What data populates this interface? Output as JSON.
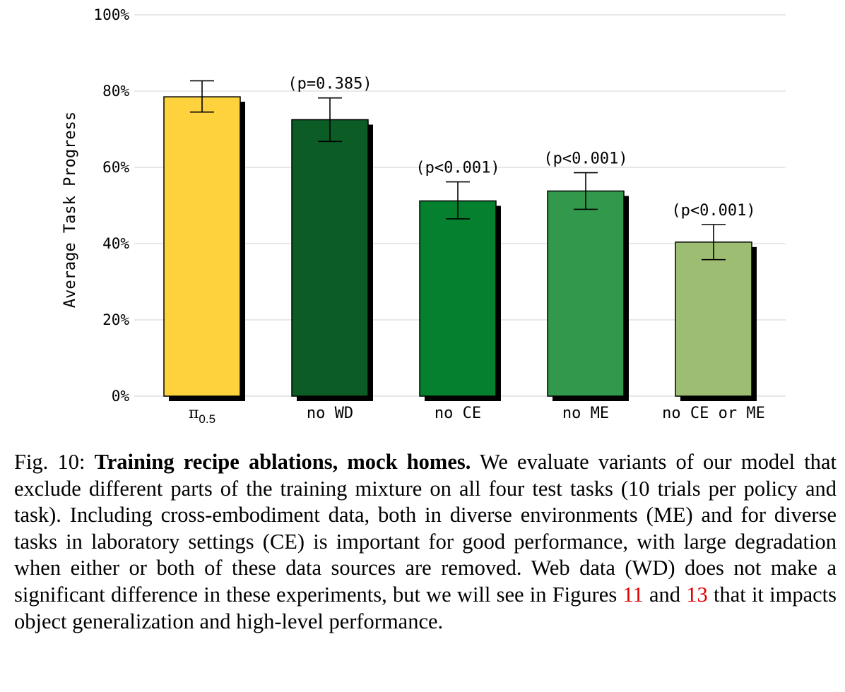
{
  "chart_data": {
    "type": "bar",
    "ylabel": "Average Task Progress",
    "ylim": [
      0,
      100
    ],
    "yticks": [
      0,
      20,
      40,
      60,
      80,
      100
    ],
    "ytick_labels": [
      "0%",
      "20%",
      "40%",
      "60%",
      "80%",
      "100%"
    ],
    "grid": true,
    "categories": [
      {
        "label_main": "π",
        "label_sub": "0.5"
      },
      {
        "label_main": "no WD",
        "label_sub": ""
      },
      {
        "label_main": "no CE",
        "label_sub": ""
      },
      {
        "label_main": "no ME",
        "label_sub": ""
      },
      {
        "label_main": "no CE or ME",
        "label_sub": ""
      }
    ],
    "values": [
      78.5,
      72.5,
      51.2,
      53.8,
      40.4
    ],
    "error_low": [
      74.5,
      66.8,
      46.5,
      49.0,
      35.8
    ],
    "error_high": [
      82.7,
      78.2,
      56.2,
      58.6,
      45.0
    ],
    "annotations": [
      "",
      "(p=0.385)",
      "(p<0.001)",
      "(p<0.001)",
      "(p<0.001)"
    ],
    "colors": [
      "#fdd23d",
      "#0c5c26",
      "#05802e",
      "#32984b",
      "#9dbe72"
    ]
  },
  "caption": {
    "label": "Fig. 10:",
    "bold_title": "Training recipe ablations, mock homes.",
    "text_part1": "We evaluate variants of our model that exclude different parts of the training mixture on all four test tasks (10 trials per policy and task). Including cross-embodiment data, both in diverse environments (ME) and for diverse tasks in laboratory settings (CE) is important for good performance, with large degradation when either or both of these data sources are removed. Web data (WD) does not make a significant difference in these experiments, but we will see in Figures",
    "ref1": "11",
    "text_and": "and",
    "ref2": "13",
    "text_part2": "that it impacts object generalization and high-level performance."
  }
}
